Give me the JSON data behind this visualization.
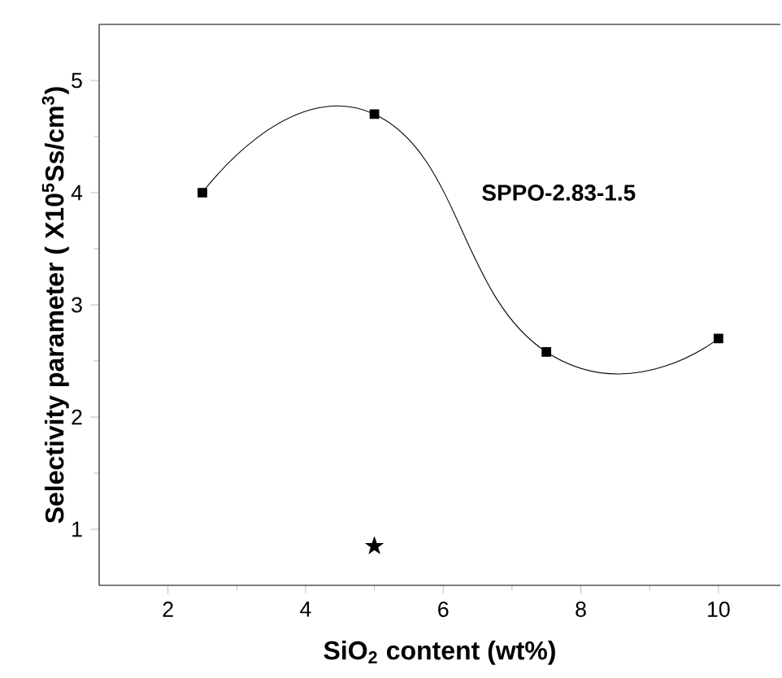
{
  "chart_data": {
    "type": "line",
    "xlabel": "SiO$_{2}$ content (wt%)",
    "ylabel": "Selectivity parameter ( X10$^{5}$Ss/cm$^{3}$)",
    "xlim": [
      1,
      10.9
    ],
    "xticks": [
      2,
      4,
      6,
      8,
      10
    ],
    "ylim": [
      0.5,
      5.5
    ],
    "yticks": [
      1,
      2,
      3,
      4,
      5
    ],
    "grid": false,
    "legend": false,
    "series": [
      {
        "name": "SPPO-2.83-1.5",
        "color": "#000000",
        "marker": "square",
        "x": [
          2.5,
          5,
          7.5,
          10
        ],
        "values": [
          4.0,
          4.7,
          2.58,
          2.7
        ]
      },
      {
        "type": "scatter",
        "color": "#000000",
        "marker": "star",
        "x": [
          5
        ],
        "values": [
          0.85
        ]
      }
    ]
  }
}
